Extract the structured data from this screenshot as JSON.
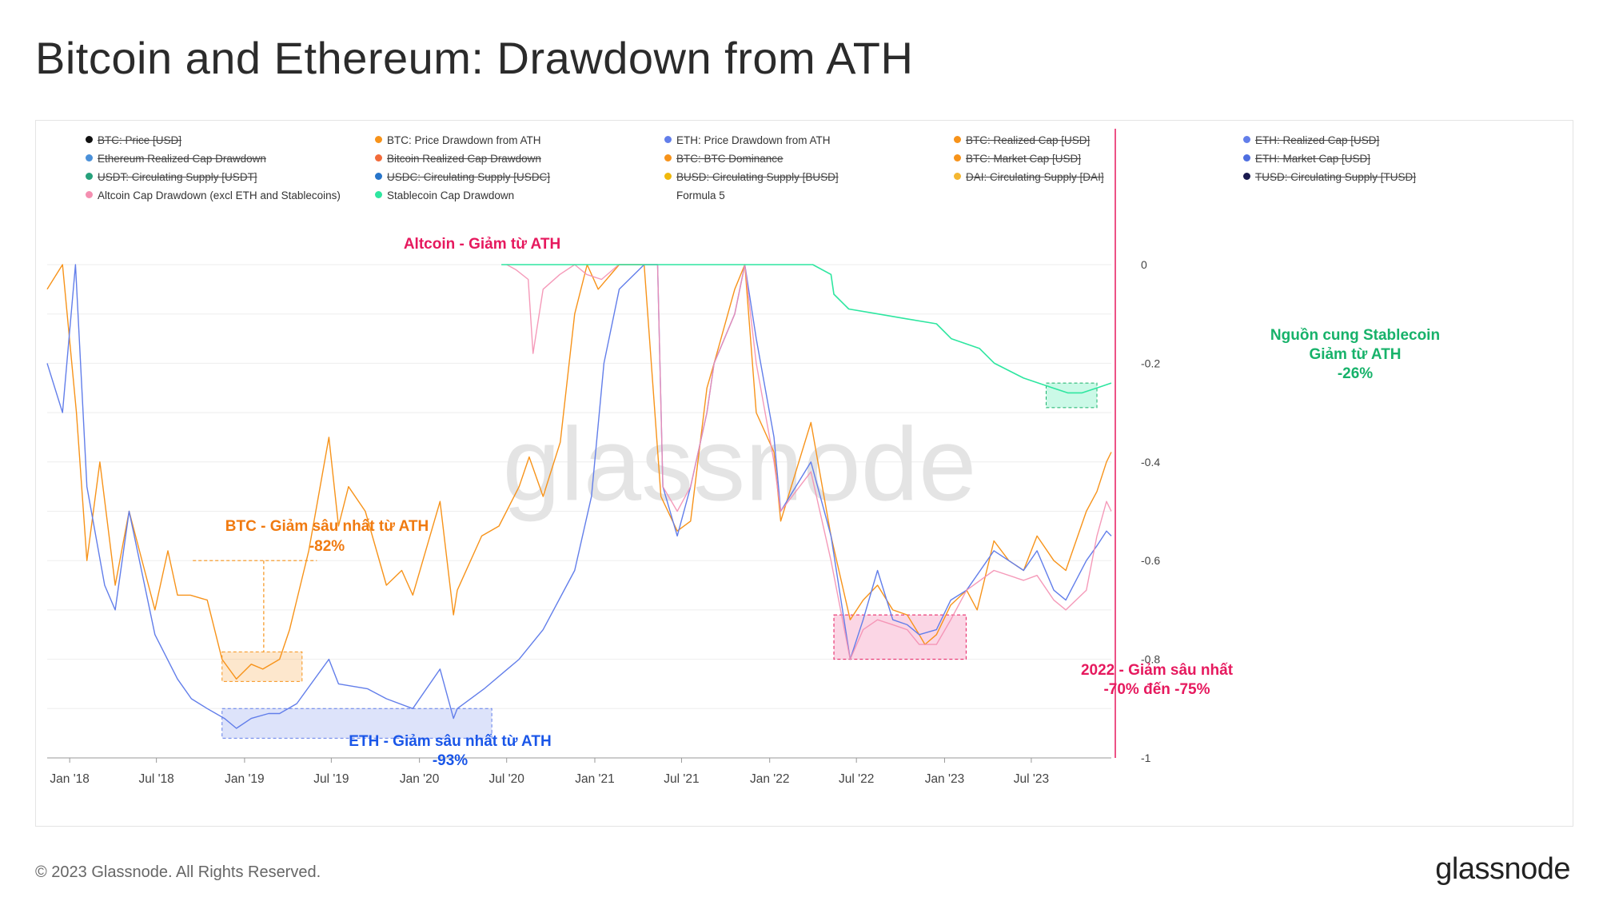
{
  "title": "Bitcoin and Ethereum: Drawdown from ATH",
  "footer": "© 2023 Glassnode. All Rights Reserved.",
  "logo": "glassnode",
  "watermark": "glassnode",
  "legend": [
    {
      "label": "BTC: Price [USD]",
      "color": "#111111",
      "off": true
    },
    {
      "label": "BTC: Price Drawdown from ATH",
      "color": "#f7931a",
      "off": false
    },
    {
      "label": "ETH: Price Drawdown from ATH",
      "color": "#627eea",
      "off": false
    },
    {
      "label": "BTC: Realized Cap [USD]",
      "color": "#f7931a",
      "off": true
    },
    {
      "label": "ETH: Realized Cap [USD]",
      "color": "#627eea",
      "off": true
    },
    {
      "label": "Ethereum Realized Cap Drawdown",
      "color": "#4a90d9",
      "off": true
    },
    {
      "label": "Bitcoin Realized Cap Drawdown",
      "color": "#f26b3a",
      "off": true
    },
    {
      "label": "BTC: BTC Dominance",
      "color": "#f7931a",
      "off": true
    },
    {
      "label": "BTC: Market Cap [USD]",
      "color": "#f7931a",
      "off": true
    },
    {
      "label": "ETH: Market Cap [USD]",
      "color": "#4e6ee0",
      "off": true
    },
    {
      "label": "USDT: Circulating Supply [USDT]",
      "color": "#26a17b",
      "off": true
    },
    {
      "label": "USDC: Circulating Supply [USDC]",
      "color": "#2775ca",
      "off": true
    },
    {
      "label": "BUSD: Circulating Supply [BUSD]",
      "color": "#f0b90b",
      "off": true
    },
    {
      "label": "DAI: Circulating Supply [DAI]",
      "color": "#f4b731",
      "off": true
    },
    {
      "label": "TUSD: Circulating Supply [TUSD]",
      "color": "#1a1a4e",
      "off": true
    },
    {
      "label": "Altcoin Cap Drawdown (excl ETH and Stablecoins)",
      "color": "#f48fb1",
      "off": false
    },
    {
      "label": "Stablecoin Cap Drawdown",
      "color": "#2ee6a0",
      "off": false
    },
    {
      "label": "Formula 5",
      "color": "",
      "off": false
    }
  ],
  "annotations": {
    "altcoin": "Altcoin - Giảm từ ATH",
    "btc_line1": "BTC - Giảm sâu nhất từ ATH",
    "btc_line2": "-82%",
    "eth_line1": "ETH - Giảm sâu nhất từ ATH",
    "eth_line2": "-93%",
    "y2022_line1": "2022 - Giảm sâu nhất",
    "y2022_line2": "-70% đến -75%",
    "stable_line1": "Nguồn cung Stablecoin",
    "stable_line2": "Giảm từ ATH",
    "stable_line3": "-26%"
  },
  "colors": {
    "btc": "#f7931a",
    "eth": "#627eea",
    "altcoin": "#f48fb1",
    "stablecoin": "#2ee6a0",
    "altcoin_annotation": "#e6195e",
    "btc_annotation": "#f07a10",
    "eth_annotation": "#1a56e8",
    "stable_annotation": "#17b26a",
    "cursor_line": "#e6195e"
  },
  "chart_data": {
    "type": "line",
    "x_ticks": [
      "Jan '18",
      "Jul '18",
      "Jan '19",
      "Jul '19",
      "Jan '20",
      "Jul '20",
      "Jan '21",
      "Jul '21",
      "Jan '22",
      "Jul '22",
      "Jan '23",
      "Jul '23"
    ],
    "y_ticks": [
      "0",
      "-0.2",
      "-0.4",
      "-0.6",
      "-0.8",
      "-1"
    ],
    "ylim": [
      -1,
      0
    ],
    "grid": true,
    "y_axis_side": "right",
    "series": [
      {
        "name": "BTC: Price Drawdown from ATH",
        "x": [
          "2017-11-15",
          "2017-12-17",
          "2018-01-15",
          "2018-02-06",
          "2018-03-05",
          "2018-04-06",
          "2018-05-05",
          "2018-06-28",
          "2018-07-25",
          "2018-08-14",
          "2018-09-10",
          "2018-10-15",
          "2018-11-15",
          "2018-12-15",
          "2019-01-15",
          "2019-02-08",
          "2019-03-15",
          "2019-04-05",
          "2019-05-15",
          "2019-06-26",
          "2019-07-16",
          "2019-08-06",
          "2019-09-10",
          "2019-10-24",
          "2019-11-25",
          "2019-12-18",
          "2020-02-13",
          "2020-03-12",
          "2020-03-20",
          "2020-05-10",
          "2020-06-15",
          "2020-07-27",
          "2020-08-17",
          "2020-09-15",
          "2020-10-21",
          "2020-11-20",
          "2020-12-16",
          "2021-01-08",
          "2021-02-21",
          "2021-03-13",
          "2021-04-14",
          "2021-05-19",
          "2021-06-22",
          "2021-07-20",
          "2021-08-23",
          "2021-09-07",
          "2021-10-20",
          "2021-11-10",
          "2021-12-04",
          "2022-01-10",
          "2022-01-24",
          "2022-03-28",
          "2022-05-09",
          "2022-06-18",
          "2022-07-15",
          "2022-08-14",
          "2022-09-15",
          "2022-10-15",
          "2022-11-09",
          "2022-11-21",
          "2022-12-15",
          "2023-01-14",
          "2023-02-16",
          "2023-03-10",
          "2023-04-14",
          "2023-05-15",
          "2023-06-15",
          "2023-07-13",
          "2023-08-17",
          "2023-09-11",
          "2023-10-24",
          "2023-11-15",
          "2023-12-05",
          "2023-12-15"
        ],
        "values": [
          -0.05,
          0,
          -0.3,
          -0.6,
          -0.4,
          -0.65,
          -0.5,
          -0.7,
          -0.58,
          -0.67,
          -0.67,
          -0.68,
          -0.8,
          -0.84,
          -0.81,
          -0.82,
          -0.8,
          -0.74,
          -0.58,
          -0.35,
          -0.53,
          -0.45,
          -0.5,
          -0.65,
          -0.62,
          -0.67,
          -0.48,
          -0.71,
          -0.66,
          -0.55,
          -0.53,
          -0.45,
          -0.39,
          -0.47,
          -0.36,
          -0.1,
          0,
          -0.05,
          0,
          0,
          0,
          -0.47,
          -0.54,
          -0.52,
          -0.25,
          -0.2,
          -0.05,
          0,
          -0.3,
          -0.38,
          -0.52,
          -0.32,
          -0.55,
          -0.72,
          -0.68,
          -0.65,
          -0.7,
          -0.71,
          -0.75,
          -0.77,
          -0.75,
          -0.69,
          -0.66,
          -0.7,
          -0.56,
          -0.6,
          -0.62,
          -0.55,
          -0.6,
          -0.62,
          -0.5,
          -0.46,
          -0.4,
          -0.38
        ]
      },
      {
        "name": "ETH: Price Drawdown from ATH",
        "x": [
          "2017-11-15",
          "2017-12-17",
          "2018-01-13",
          "2018-02-06",
          "2018-03-15",
          "2018-04-06",
          "2018-05-05",
          "2018-06-28",
          "2018-08-14",
          "2018-09-12",
          "2018-10-15",
          "2018-11-20",
          "2018-12-15",
          "2019-01-15",
          "2019-02-20",
          "2019-03-15",
          "2019-04-20",
          "2019-06-26",
          "2019-07-16",
          "2019-09-15",
          "2019-10-24",
          "2019-12-18",
          "2020-02-13",
          "2020-03-12",
          "2020-03-20",
          "2020-05-15",
          "2020-07-27",
          "2020-09-15",
          "2020-11-20",
          "2020-12-25",
          "2021-01-20",
          "2021-02-21",
          "2021-04-14",
          "2021-05-12",
          "2021-05-23",
          "2021-06-22",
          "2021-07-20",
          "2021-08-23",
          "2021-09-07",
          "2021-10-20",
          "2021-11-10",
          "2021-12-04",
          "2022-01-10",
          "2022-01-24",
          "2022-03-28",
          "2022-05-09",
          "2022-06-18",
          "2022-07-15",
          "2022-08-14",
          "2022-09-15",
          "2022-10-15",
          "2022-11-09",
          "2022-12-15",
          "2023-01-14",
          "2023-02-16",
          "2023-04-14",
          "2023-06-15",
          "2023-07-13",
          "2023-08-17",
          "2023-09-11",
          "2023-10-24",
          "2023-11-15",
          "2023-12-05",
          "2023-12-15"
        ],
        "values": [
          -0.2,
          -0.3,
          0,
          -0.45,
          -0.65,
          -0.7,
          -0.5,
          -0.75,
          -0.84,
          -0.88,
          -0.9,
          -0.92,
          -0.94,
          -0.92,
          -0.91,
          -0.91,
          -0.89,
          -0.8,
          -0.85,
          -0.86,
          -0.88,
          -0.9,
          -0.82,
          -0.92,
          -0.9,
          -0.86,
          -0.8,
          -0.74,
          -0.62,
          -0.47,
          -0.2,
          -0.05,
          0,
          0,
          -0.45,
          -0.55,
          -0.45,
          -0.3,
          -0.2,
          -0.1,
          0,
          -0.15,
          -0.35,
          -0.5,
          -0.4,
          -0.55,
          -0.8,
          -0.72,
          -0.62,
          -0.72,
          -0.73,
          -0.75,
          -0.74,
          -0.68,
          -0.66,
          -0.58,
          -0.62,
          -0.58,
          -0.66,
          -0.68,
          -0.6,
          -0.57,
          -0.54,
          -0.55
        ]
      },
      {
        "name": "Altcoin Cap Drawdown (excl ETH and Stablecoins)",
        "x": [
          "2020-07-01",
          "2020-07-20",
          "2020-08-15",
          "2020-08-25",
          "2020-09-15",
          "2020-10-20",
          "2020-11-20",
          "2020-12-15",
          "2021-01-15",
          "2021-02-20",
          "2021-04-14",
          "2021-05-12",
          "2021-05-23",
          "2021-06-22",
          "2021-07-20",
          "2021-08-23",
          "2021-09-07",
          "2021-10-20",
          "2021-11-10",
          "2021-12-04",
          "2022-01-10",
          "2022-01-24",
          "2022-03-28",
          "2022-05-09",
          "2022-06-18",
          "2022-07-15",
          "2022-08-14",
          "2022-09-15",
          "2022-10-15",
          "2022-11-09",
          "2022-12-15",
          "2023-01-14",
          "2023-02-16",
          "2023-04-14",
          "2023-06-15",
          "2023-07-13",
          "2023-08-17",
          "2023-09-11",
          "2023-10-24",
          "2023-11-15",
          "2023-12-05",
          "2023-12-15"
        ],
        "values": [
          0,
          -0.01,
          -0.03,
          -0.18,
          -0.05,
          -0.02,
          0,
          -0.02,
          -0.03,
          0,
          0,
          0,
          -0.45,
          -0.5,
          -0.45,
          -0.3,
          -0.2,
          -0.1,
          0,
          -0.2,
          -0.4,
          -0.5,
          -0.42,
          -0.6,
          -0.8,
          -0.74,
          -0.72,
          -0.73,
          -0.74,
          -0.77,
          -0.77,
          -0.72,
          -0.66,
          -0.62,
          -0.64,
          -0.63,
          -0.68,
          -0.7,
          -0.66,
          -0.55,
          -0.48,
          -0.5
        ]
      },
      {
        "name": "Stablecoin Cap Drawdown",
        "x": [
          "2020-06-20",
          "2021-01-01",
          "2021-07-01",
          "2022-01-01",
          "2022-04-01",
          "2022-05-09",
          "2022-05-15",
          "2022-06-15",
          "2022-08-15",
          "2022-10-15",
          "2022-12-15",
          "2023-01-15",
          "2023-03-15",
          "2023-04-15",
          "2023-06-15",
          "2023-08-15",
          "2023-09-15",
          "2023-10-15",
          "2023-11-15",
          "2023-12-15"
        ],
        "values": [
          0,
          0,
          0,
          0,
          0,
          -0.02,
          -0.06,
          -0.09,
          -0.1,
          -0.11,
          -0.12,
          -0.15,
          -0.17,
          -0.2,
          -0.23,
          -0.25,
          -0.26,
          -0.26,
          -0.25,
          -0.24
        ]
      }
    ]
  }
}
